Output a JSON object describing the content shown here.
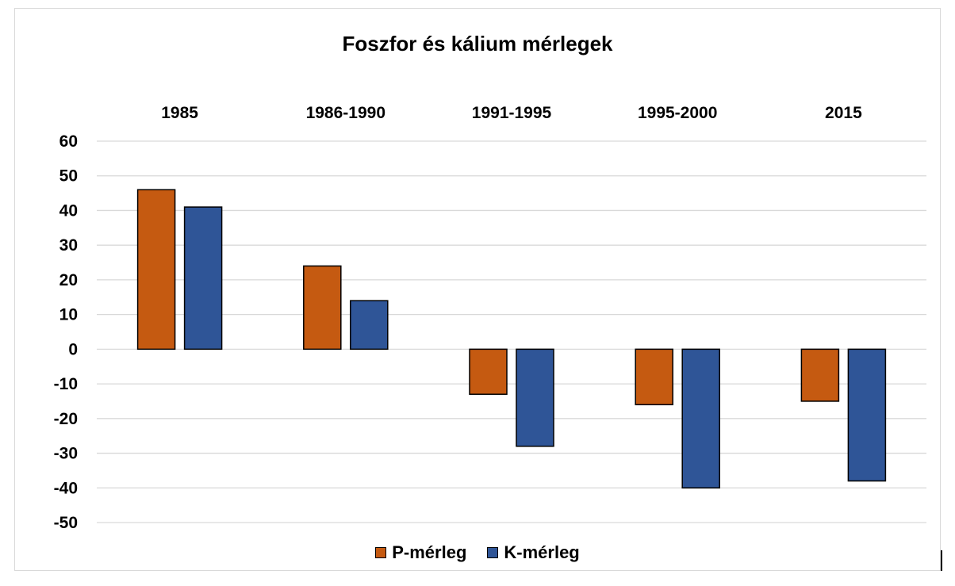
{
  "chart_data": {
    "type": "bar",
    "title": "Foszfor és kálium mérlegek",
    "categories": [
      "1985",
      "1986-1990",
      "1991-1995",
      "1995-2000",
      "2015"
    ],
    "series": [
      {
        "name": "P-mérleg",
        "values": [
          46,
          24,
          -13,
          -16,
          -15
        ],
        "color": "#c55a11"
      },
      {
        "name": "K-mérleg",
        "values": [
          41,
          14,
          -28,
          -40,
          -38
        ],
        "color": "#2f5597"
      }
    ],
    "ylim": [
      -50,
      60
    ],
    "yticks": [
      60,
      50,
      40,
      30,
      20,
      10,
      0,
      -10,
      -20,
      -30,
      -40,
      -50
    ],
    "xlabel": "",
    "ylabel": "",
    "grid": true,
    "category_labels_position": "top",
    "legend_position": "bottom"
  }
}
